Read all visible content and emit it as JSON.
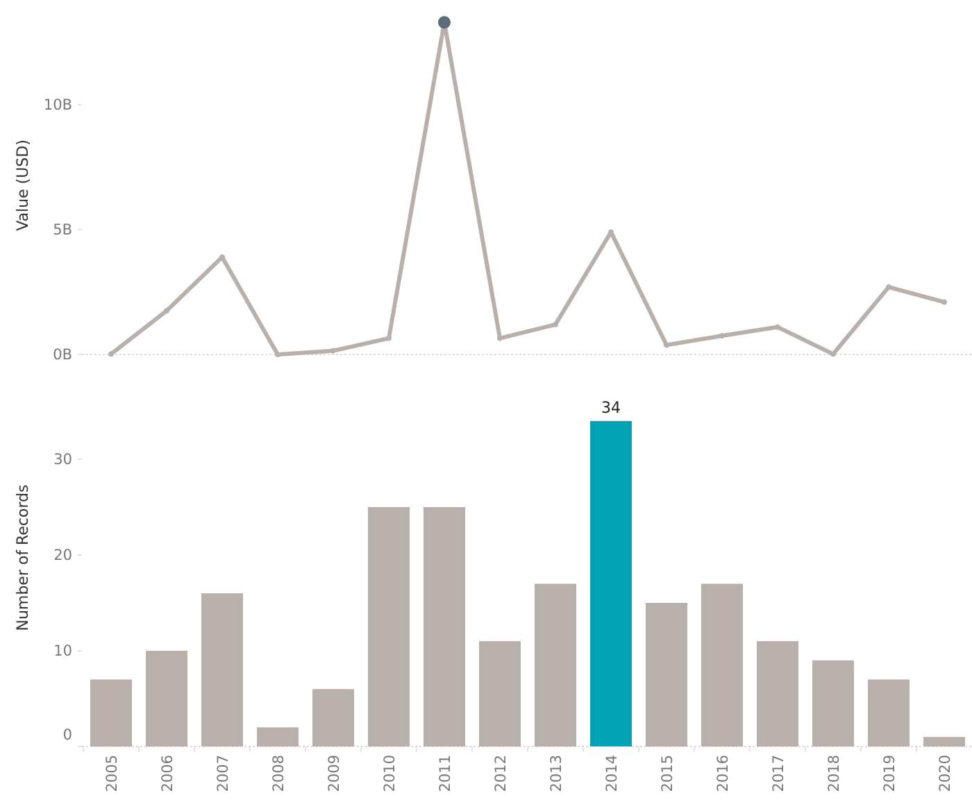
{
  "chart_data": [
    {
      "type": "line",
      "ylabel": "Value (USD)",
      "y_ticks": [
        {
          "value": 0,
          "label": "0B"
        },
        {
          "value": 5,
          "label": "5B"
        },
        {
          "value": 10,
          "label": "10B"
        }
      ],
      "ylim": [
        0,
        14
      ],
      "x": [
        "2005",
        "2006",
        "2007",
        "2008",
        "2009",
        "2010",
        "2011",
        "2012",
        "2013",
        "2014",
        "2015",
        "2016",
        "2017",
        "2018",
        "2019",
        "2020"
      ],
      "values": [
        0.02,
        1.75,
        3.9,
        0.0,
        0.15,
        0.65,
        13.3,
        0.65,
        1.2,
        4.9,
        0.38,
        0.75,
        1.1,
        0.02,
        2.7,
        2.1
      ],
      "highlighted_x": "2011",
      "line_color": "#bab0ab",
      "highlight_color": "#5f6b79"
    },
    {
      "type": "bar",
      "ylabel": "Number of Records",
      "y_ticks": [
        {
          "value": 0,
          "label": "0"
        },
        {
          "value": 10,
          "label": "10"
        },
        {
          "value": 20,
          "label": "20"
        },
        {
          "value": 30,
          "label": "30"
        }
      ],
      "ylim": [
        0,
        34
      ],
      "categories": [
        "2005",
        "2006",
        "2007",
        "2008",
        "2009",
        "2010",
        "2011",
        "2012",
        "2013",
        "2014",
        "2015",
        "2016",
        "2017",
        "2018",
        "2019",
        "2020"
      ],
      "values": [
        7,
        10,
        16,
        2,
        6,
        25,
        25,
        11,
        17,
        34,
        15,
        17,
        11,
        9,
        7,
        1
      ],
      "highlighted_category": "2014",
      "highlight_label": "34",
      "bar_color": "#bab0ab",
      "highlight_color": "#00a2b3"
    }
  ]
}
